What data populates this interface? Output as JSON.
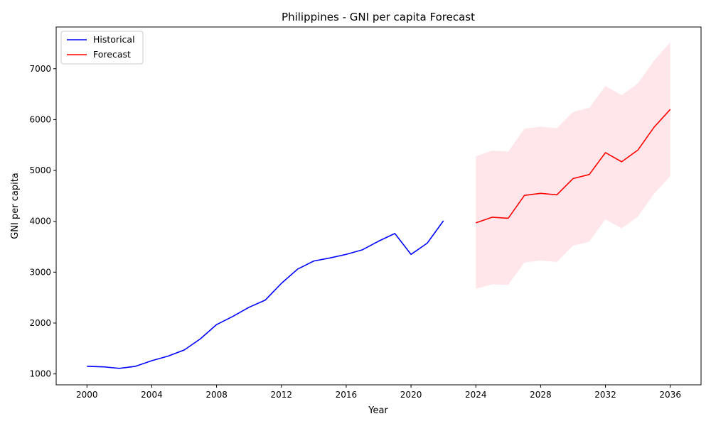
{
  "chart_data": {
    "type": "line",
    "title": "Philippines - GNI per capita Forecast",
    "xlabel": "Year",
    "ylabel": "GNI per capita",
    "xlim": [
      1998.1,
      2037.9
    ],
    "ylim": [
      786,
      7820
    ],
    "xticks": [
      2000,
      2004,
      2008,
      2012,
      2016,
      2020,
      2024,
      2028,
      2032,
      2036
    ],
    "yticks": [
      1000,
      2000,
      3000,
      4000,
      5000,
      6000,
      7000
    ],
    "grid": false,
    "legend_position": "upper-left",
    "series": [
      {
        "name": "Historical",
        "color": "#0000ff",
        "x": [
          2000,
          2001,
          2002,
          2003,
          2004,
          2005,
          2006,
          2007,
          2008,
          2009,
          2010,
          2011,
          2012,
          2013,
          2014,
          2015,
          2016,
          2017,
          2018,
          2019,
          2020,
          2021,
          2022
        ],
        "y": [
          1150,
          1140,
          1110,
          1150,
          1260,
          1350,
          1470,
          1690,
          1970,
          2130,
          2310,
          2450,
          2780,
          3060,
          3220,
          3280,
          3350,
          3440,
          3610,
          3760,
          3350,
          3570,
          4010
        ]
      },
      {
        "name": "Forecast",
        "color": "#ff0000",
        "x": [
          2024,
          2025,
          2026,
          2027,
          2028,
          2029,
          2030,
          2031,
          2032,
          2033,
          2034,
          2035,
          2036
        ],
        "y": [
          3970,
          4080,
          4060,
          4510,
          4550,
          4520,
          4840,
          4920,
          5350,
          5170,
          5400,
          5850,
          6200
        ]
      }
    ],
    "confidence_band": {
      "color": "#ffc0cb",
      "opacity": 0.4,
      "x": [
        2024,
        2025,
        2026,
        2027,
        2028,
        2029,
        2030,
        2031,
        2032,
        2033,
        2034,
        2035,
        2036
      ],
      "lower": [
        2670,
        2760,
        2750,
        3190,
        3230,
        3200,
        3520,
        3600,
        4040,
        3860,
        4090,
        4540,
        4890
      ],
      "upper": [
        5280,
        5390,
        5370,
        5820,
        5860,
        5830,
        6150,
        6230,
        6660,
        6480,
        6710,
        7160,
        7520
      ]
    }
  }
}
